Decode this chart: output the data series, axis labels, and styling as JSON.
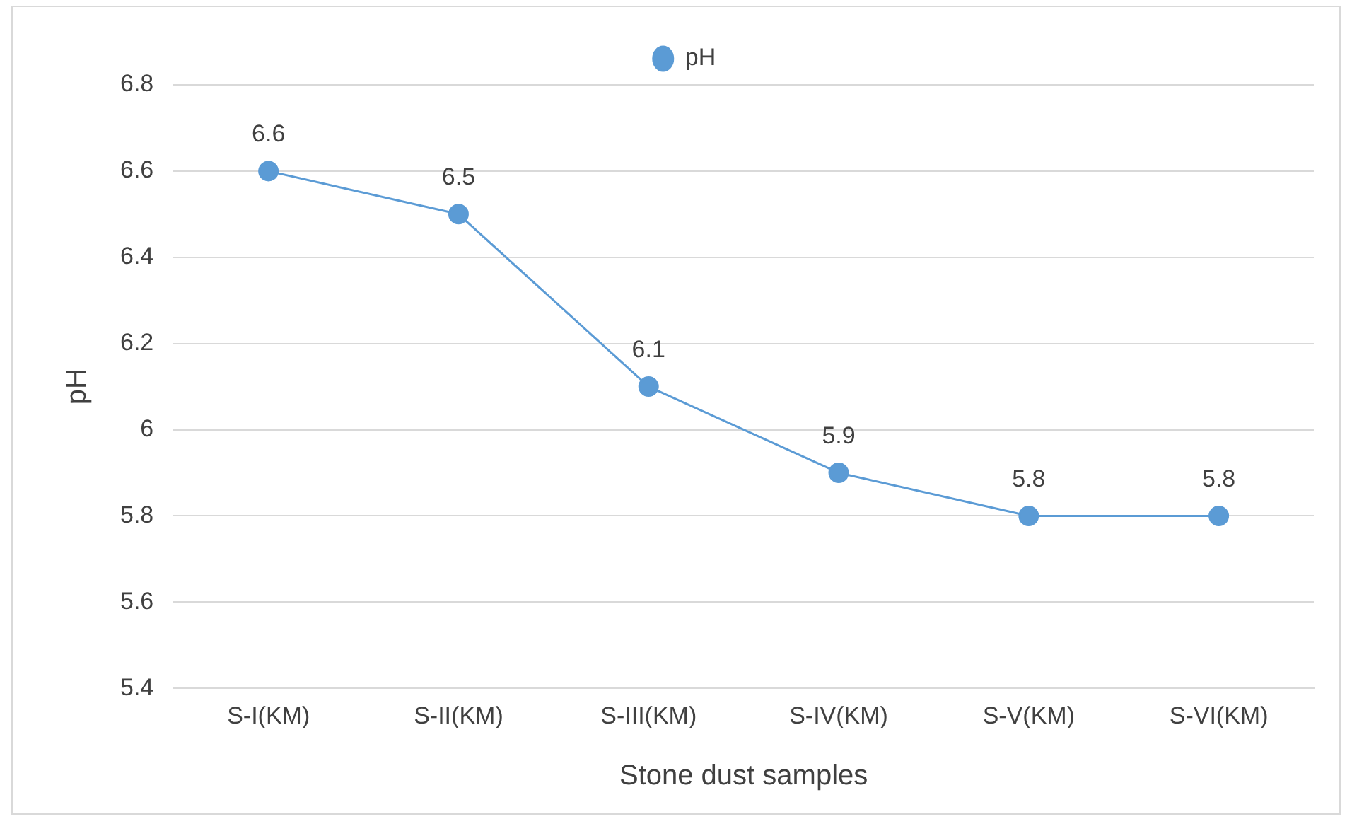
{
  "chart_data": {
    "type": "line",
    "xlabel": "Stone dust samples",
    "ylabel": "pH",
    "categories": [
      "S-I(KM)",
      "S-II(KM)",
      "S-III(KM)",
      "S-IV(KM)",
      "S-V(KM)",
      "S-VI(KM)"
    ],
    "series": [
      {
        "name": "pH",
        "color": "#5b9bd5",
        "values": [
          6.6,
          6.5,
          6.1,
          5.9,
          5.8,
          5.8
        ]
      }
    ],
    "ylim": [
      5.4,
      6.8
    ],
    "yticks": [
      5.4,
      5.6,
      5.8,
      6,
      6.2,
      6.4,
      6.6,
      6.8
    ],
    "grid": "y",
    "legend": "top",
    "marker": "circle",
    "line_style": "solid",
    "data_labels": true
  }
}
